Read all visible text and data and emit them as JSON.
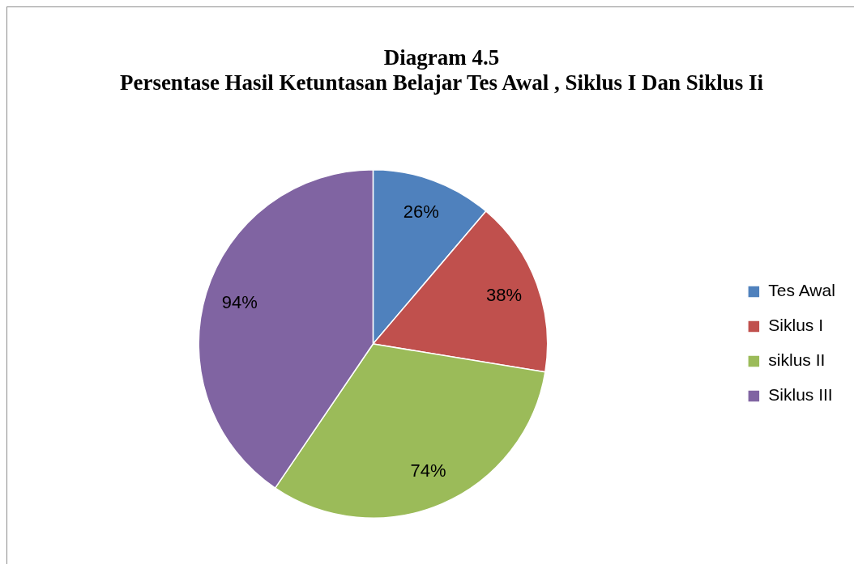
{
  "chart_data": {
    "type": "pie",
    "title": "Diagram 4.5",
    "subtitle": "Persentase Hasil Ketuntasan Belajar Tes Awal , Siklus I Dan Siklus Ii",
    "categories": [
      "Tes Awal",
      "Siklus I",
      "siklus II",
      "Siklus III"
    ],
    "values": [
      26,
      38,
      74,
      94
    ],
    "colors": [
      "#4f81bd",
      "#c0504d",
      "#9bbb59",
      "#8064a2"
    ],
    "value_labels": [
      "26%",
      "38%",
      "74%",
      "94%"
    ],
    "legend": "right"
  }
}
